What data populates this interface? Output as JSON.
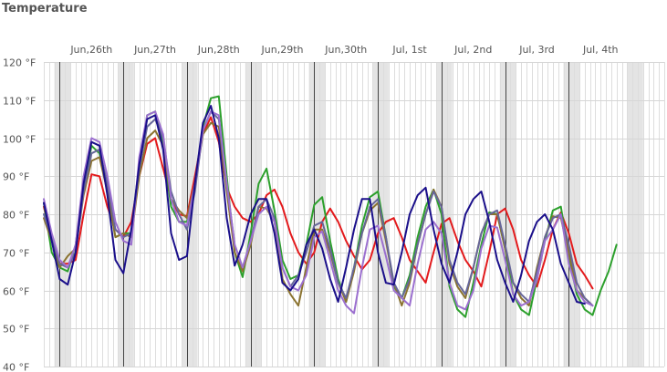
{
  "chart_data": {
    "type": "line",
    "title": "Temperature",
    "y_unit": "°F",
    "ylim": [
      40,
      120
    ],
    "y_ticks": [
      "120 °F",
      "110 °F",
      "100 °F",
      "90 °F",
      "80 °F",
      "70 °F",
      "60 °F",
      "50 °F",
      "40 °F"
    ],
    "x_unit": "hours",
    "day_labels": [
      "Jun,26th",
      "Jun,27th",
      "Jun,28th",
      "Jun,29th",
      "Jun,30th",
      "Jul, 1st",
      "Jul, 2nd",
      "Jul, 3rd",
      "Jul, 4th"
    ],
    "xlim": [
      0,
      234
    ],
    "grid": true,
    "colors": {
      "background": "#ffffff",
      "weekend_band": "#e4e4e4",
      "grid_minor": "#dddddd",
      "grid_day": "#444444",
      "axis_text": "#555555"
    },
    "series": [
      {
        "color": "#e31a1c",
        "x": [
          0,
          3,
          6,
          9,
          12,
          15,
          18,
          21,
          24,
          27,
          30,
          33,
          36,
          39,
          42,
          45,
          48,
          51,
          54,
          57,
          60,
          63,
          66,
          69,
          72,
          75,
          78,
          81,
          84,
          87,
          90,
          93,
          96,
          99,
          102,
          105,
          108,
          111,
          114,
          117,
          120,
          123,
          126,
          129,
          132,
          135,
          138,
          141,
          144,
          147,
          150,
          153,
          156,
          159,
          162,
          165,
          168,
          171,
          174,
          177,
          180,
          183,
          186,
          189,
          192,
          195,
          198,
          201,
          204,
          207,
          210,
          213,
          216,
          219,
          222
        ],
        "y": [
          82,
          73,
          67,
          67,
          68,
          80,
          90.5,
          90,
          82,
          76,
          74,
          78,
          90,
          98.5,
          100,
          92,
          84,
          80,
          79.5,
          90,
          101,
          105.5,
          99,
          87,
          82,
          79,
          78,
          80,
          85,
          86.5,
          82,
          75,
          70,
          67,
          70,
          78,
          81.5,
          78,
          73,
          69,
          65.5,
          68,
          75,
          78,
          79,
          74,
          68,
          65,
          62,
          70,
          77.5,
          79,
          73,
          68,
          65,
          61,
          70,
          80,
          81.5,
          76,
          68,
          64,
          61,
          68,
          76,
          80.5,
          75,
          67,
          64,
          60.5,
          null,
          null,
          null,
          null,
          null
        ]
      },
      {
        "color": "#2ca02c",
        "x": [
          0,
          3,
          6,
          9,
          12,
          15,
          18,
          21,
          24,
          27,
          30,
          33,
          36,
          39,
          42,
          45,
          48,
          51,
          54,
          57,
          60,
          63,
          66,
          69,
          72,
          75,
          78,
          81,
          84,
          87,
          90,
          93,
          96,
          99,
          102,
          105,
          108,
          111,
          114,
          117,
          120,
          123,
          126,
          129,
          132,
          135,
          138,
          141,
          144,
          147,
          150,
          153,
          156,
          159,
          162,
          165,
          168,
          171,
          174,
          177,
          180,
          183,
          186,
          189,
          192,
          195,
          198,
          201,
          204,
          207,
          210,
          213,
          216,
          219,
          222
        ],
        "y": [
          83,
          70,
          66,
          65,
          72,
          88,
          98,
          96,
          86,
          74,
          75,
          75,
          93,
          106,
          107,
          98,
          82,
          78,
          78,
          88,
          103,
          110.5,
          111,
          90,
          70,
          63.5,
          75,
          88,
          92,
          81,
          68,
          63,
          64,
          72,
          82.5,
          84.5,
          73,
          63,
          57,
          66,
          77,
          84.5,
          86,
          74,
          61,
          58,
          64,
          74,
          82,
          86.5,
          80,
          61,
          55,
          53,
          62,
          72,
          80.5,
          80,
          71,
          59,
          55,
          53.5,
          63,
          73,
          81,
          82,
          69,
          59,
          55,
          53.5,
          60,
          65,
          72,
          null,
          null
        ]
      },
      {
        "color": "#8b7330",
        "x": [
          0,
          3,
          6,
          9,
          12,
          15,
          18,
          21,
          24,
          27,
          30,
          33,
          36,
          39,
          42,
          45,
          48,
          51,
          54,
          57,
          60,
          63,
          66,
          69,
          72,
          75,
          78,
          81,
          84,
          87,
          90,
          93,
          96,
          99,
          102,
          105,
          108,
          111,
          114,
          117,
          120,
          123,
          126,
          129,
          132,
          135,
          138,
          141,
          144,
          147,
          150,
          153,
          156,
          159,
          162,
          165,
          168,
          171,
          174,
          177,
          180,
          183,
          186,
          189,
          192,
          195,
          198,
          201,
          204,
          207,
          210,
          213,
          216,
          219,
          222
        ],
        "y": [
          79,
          73,
          66,
          69,
          71,
          85,
          94,
          95,
          86,
          74,
          75,
          74,
          90,
          100,
          102,
          98,
          84,
          81,
          79,
          88,
          101,
          104,
          103,
          86,
          70,
          65,
          72,
          82,
          81.5,
          78,
          63,
          59,
          56,
          66,
          76,
          76,
          70,
          62,
          57,
          65,
          75,
          81,
          83,
          73,
          62,
          56,
          62,
          72,
          80,
          86.5,
          82,
          67,
          61,
          58,
          66,
          75,
          80,
          80,
          71,
          62,
          58,
          56,
          66,
          74,
          79.5,
          79,
          70,
          60,
          58,
          56,
          null,
          null,
          null,
          null,
          null
        ]
      },
      {
        "color": "#666699",
        "x": [
          0,
          3,
          6,
          9,
          12,
          15,
          18,
          21,
          24,
          27,
          30,
          33,
          36,
          39,
          42,
          45,
          48,
          51,
          54,
          57,
          60,
          63,
          66,
          69,
          72,
          75,
          78,
          81,
          84,
          87,
          90,
          93,
          96,
          99,
          102,
          105,
          108,
          111,
          114,
          117,
          120,
          123,
          126,
          129,
          132,
          135,
          138,
          141,
          144,
          147,
          150,
          153,
          156,
          159,
          162,
          165,
          168,
          171,
          174,
          177,
          180,
          183,
          186,
          189,
          192,
          195,
          198,
          201,
          204,
          207,
          210,
          213,
          216,
          219,
          222
        ],
        "y": [
          80,
          74,
          67,
          66,
          70,
          86,
          96,
          97,
          88,
          76,
          74,
          75,
          92,
          103,
          105,
          100,
          86,
          80,
          76,
          86,
          102,
          107,
          105,
          88,
          72,
          66,
          73,
          82,
          84,
          79,
          66,
          61,
          64,
          70,
          77,
          78,
          71,
          62,
          58,
          66,
          75,
          82,
          84,
          74,
          62,
          58,
          63,
          72,
          80,
          86,
          82,
          68,
          62,
          59,
          66,
          75,
          80,
          81,
          72,
          62,
          59,
          57,
          65,
          74,
          79,
          80,
          72,
          62,
          58,
          56,
          null,
          null,
          null,
          null,
          null
        ]
      },
      {
        "color": "#9b6fcf",
        "x": [
          0,
          3,
          6,
          9,
          12,
          15,
          18,
          21,
          24,
          27,
          30,
          33,
          36,
          39,
          42,
          45,
          48,
          51,
          54,
          57,
          60,
          63,
          66,
          69,
          72,
          75,
          78,
          81,
          84,
          87,
          90,
          93,
          96,
          99,
          102,
          105,
          108,
          111,
          114,
          117,
          120,
          123,
          126,
          129,
          132,
          135,
          138,
          141,
          144,
          147,
          150,
          153,
          156,
          159,
          162,
          165,
          168,
          171,
          174,
          177,
          180,
          183,
          186,
          189,
          192,
          195,
          198,
          201,
          204,
          207,
          210,
          213,
          216,
          219,
          222
        ],
        "y": [
          84,
          75,
          68,
          66,
          72,
          90,
          100,
          99,
          90,
          78,
          73,
          72,
          95,
          106,
          107,
          101,
          84,
          78,
          77,
          88,
          102,
          107,
          106,
          88,
          72,
          66,
          73,
          80,
          82,
          78,
          66,
          61,
          60,
          64,
          74,
          75.5,
          68,
          60,
          56,
          54,
          66,
          76,
          77,
          69,
          60,
          58,
          56,
          67,
          76,
          78,
          75,
          62,
          56,
          55,
          60,
          71,
          77,
          76.5,
          68,
          59,
          56,
          57,
          63,
          73,
          76,
          80,
          67,
          60,
          57,
          56,
          null,
          null,
          null,
          null,
          null
        ]
      },
      {
        "color": "#1a0f8a",
        "x": [
          0,
          3,
          6,
          9,
          12,
          15,
          18,
          21,
          24,
          27,
          30,
          33,
          36,
          39,
          42,
          45,
          48,
          51,
          54,
          57,
          60,
          63,
          66,
          69,
          72,
          75,
          78,
          81,
          84,
          87,
          90,
          93,
          96,
          99,
          102,
          105,
          108,
          111,
          114,
          117,
          120,
          123,
          126,
          129,
          132,
          135,
          138,
          141,
          144,
          147,
          150,
          153,
          156,
          159,
          162,
          165,
          168,
          171,
          174,
          177,
          180,
          183,
          186,
          189,
          192,
          195,
          198,
          201,
          204,
          207,
          210,
          213,
          216,
          219,
          222
        ],
        "y": [
          83,
          73,
          63,
          61.5,
          70,
          88,
          99,
          98,
          85,
          68,
          64.5,
          76,
          93,
          105,
          106,
          97,
          75,
          68,
          69,
          88,
          104,
          108.5,
          100,
          79,
          66.5,
          72,
          80,
          84,
          84,
          75,
          62,
          60,
          63,
          72,
          76,
          71,
          63,
          57,
          66,
          76,
          84,
          84,
          70,
          62,
          61.5,
          70,
          80,
          85,
          87,
          76,
          67,
          62,
          70,
          80,
          84,
          86,
          78,
          68,
          62,
          57,
          64,
          73,
          78,
          80,
          76,
          67,
          62,
          57,
          56.5,
          null,
          null,
          null,
          null,
          null,
          null
        ]
      }
    ]
  }
}
